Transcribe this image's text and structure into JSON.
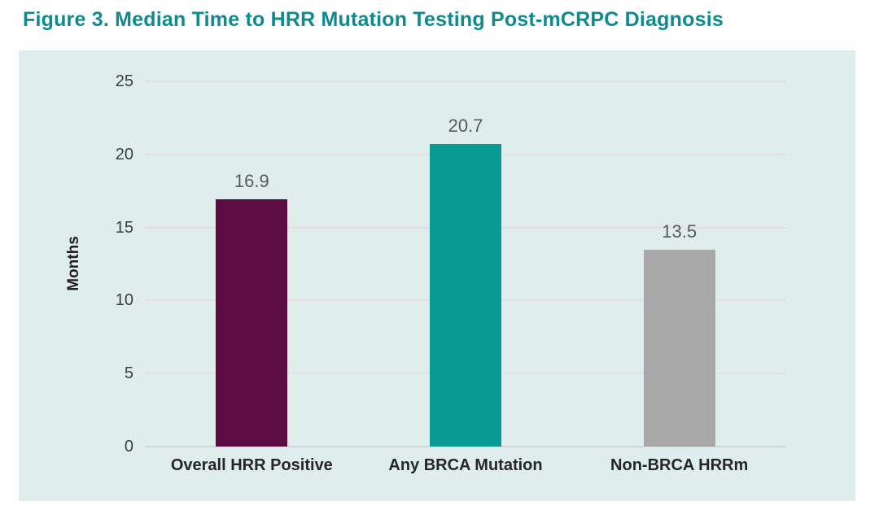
{
  "title": "Figure 3. Median Time to HRR Mutation Testing Post-mCRPC Diagnosis",
  "colors": {
    "title_teal": "#0e8b8e",
    "panel_bg": "#dfeeed",
    "gridline": "#e3dfdf",
    "baseline": "#d8d5d5",
    "value_label": "#58595b",
    "tick_label": "#3d3d3f",
    "category_label": "#262626",
    "y_axis_title": "#231f20"
  },
  "chart_data": {
    "type": "bar",
    "categories": [
      "Overall HRR Positive",
      "Any BRCA Mutation",
      "Non-BRCA HRRm"
    ],
    "values": [
      16.9,
      20.7,
      13.5
    ],
    "title": "Figure 3. Median Time to HRR Mutation Testing Post-mCRPC Diagnosis",
    "xlabel": "",
    "ylabel": "Months",
    "ylim": [
      0,
      25
    ],
    "yticks": [
      0,
      5,
      10,
      15,
      20,
      25
    ],
    "grid": true,
    "legend_position": "none",
    "bar_colors": [
      "#5d0c41",
      "#0a9a94",
      "#a8a8a8"
    ]
  }
}
